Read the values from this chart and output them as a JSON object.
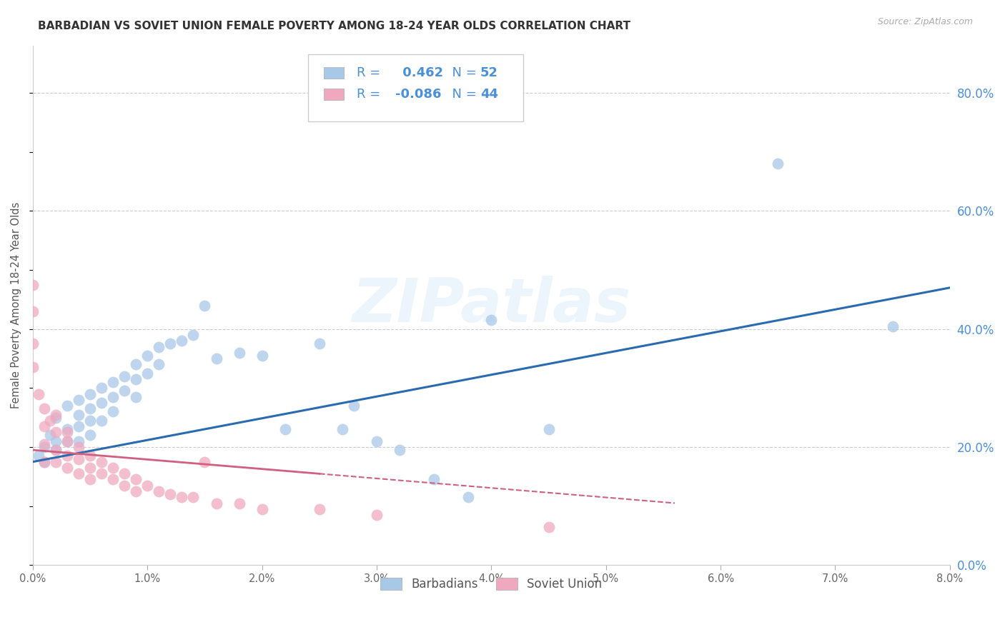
{
  "title": "BARBADIAN VS SOVIET UNION FEMALE POVERTY AMONG 18-24 YEAR OLDS CORRELATION CHART",
  "source": "Source: ZipAtlas.com",
  "ylabel": "Female Poverty Among 18-24 Year Olds",
  "xlim": [
    0.0,
    0.08
  ],
  "ylim": [
    0.0,
    0.88
  ],
  "x_ticks": [
    0.0,
    0.01,
    0.02,
    0.03,
    0.04,
    0.05,
    0.06,
    0.07,
    0.08
  ],
  "x_tick_labels": [
    "0.0%",
    "1.0%",
    "2.0%",
    "3.0%",
    "4.0%",
    "5.0%",
    "6.0%",
    "7.0%",
    "8.0%"
  ],
  "y_ticks": [
    0.0,
    0.2,
    0.4,
    0.6,
    0.8
  ],
  "y_tick_labels": [
    "0.0%",
    "20.0%",
    "40.0%",
    "60.0%",
    "80.0%"
  ],
  "grid_color": "#cccccc",
  "background_color": "#ffffff",
  "blue_dot_color": "#a8c8e8",
  "pink_dot_color": "#f0a8be",
  "blue_line_color": "#2a6ab0",
  "pink_line_color": "#d06080",
  "axis_color": "#4a90d9",
  "watermark": "ZIPatlas",
  "legend_R_blue": "0.462",
  "legend_N_blue": "52",
  "legend_R_pink": "-0.086",
  "legend_N_pink": "44",
  "barbadian_x": [
    0.0005,
    0.001,
    0.001,
    0.0015,
    0.002,
    0.002,
    0.002,
    0.003,
    0.003,
    0.003,
    0.004,
    0.004,
    0.004,
    0.004,
    0.005,
    0.005,
    0.005,
    0.005,
    0.006,
    0.006,
    0.006,
    0.007,
    0.007,
    0.007,
    0.008,
    0.008,
    0.009,
    0.009,
    0.009,
    0.01,
    0.01,
    0.011,
    0.011,
    0.012,
    0.013,
    0.014,
    0.015,
    0.016,
    0.018,
    0.02,
    0.022,
    0.025,
    0.027,
    0.028,
    0.03,
    0.032,
    0.035,
    0.038,
    0.04,
    0.045,
    0.065,
    0.075
  ],
  "barbadian_y": [
    0.185,
    0.2,
    0.175,
    0.22,
    0.25,
    0.21,
    0.195,
    0.27,
    0.23,
    0.21,
    0.28,
    0.255,
    0.235,
    0.21,
    0.29,
    0.265,
    0.245,
    0.22,
    0.3,
    0.275,
    0.245,
    0.31,
    0.285,
    0.26,
    0.32,
    0.295,
    0.34,
    0.315,
    0.285,
    0.355,
    0.325,
    0.37,
    0.34,
    0.375,
    0.38,
    0.39,
    0.44,
    0.35,
    0.36,
    0.355,
    0.23,
    0.375,
    0.23,
    0.27,
    0.21,
    0.195,
    0.145,
    0.115,
    0.415,
    0.23,
    0.68,
    0.405
  ],
  "soviet_x": [
    0.0,
    0.0,
    0.0,
    0.0,
    0.0005,
    0.001,
    0.001,
    0.001,
    0.001,
    0.0015,
    0.002,
    0.002,
    0.002,
    0.002,
    0.003,
    0.003,
    0.003,
    0.003,
    0.004,
    0.004,
    0.004,
    0.005,
    0.005,
    0.005,
    0.006,
    0.006,
    0.007,
    0.007,
    0.008,
    0.008,
    0.009,
    0.009,
    0.01,
    0.011,
    0.012,
    0.013,
    0.014,
    0.015,
    0.016,
    0.018,
    0.02,
    0.025,
    0.03,
    0.045
  ],
  "soviet_y": [
    0.475,
    0.43,
    0.375,
    0.335,
    0.29,
    0.265,
    0.235,
    0.205,
    0.175,
    0.245,
    0.255,
    0.225,
    0.195,
    0.175,
    0.225,
    0.21,
    0.185,
    0.165,
    0.2,
    0.18,
    0.155,
    0.185,
    0.165,
    0.145,
    0.175,
    0.155,
    0.165,
    0.145,
    0.155,
    0.135,
    0.145,
    0.125,
    0.135,
    0.125,
    0.12,
    0.115,
    0.115,
    0.175,
    0.105,
    0.105,
    0.095,
    0.095,
    0.085,
    0.065
  ],
  "blue_line_x0": 0.0,
  "blue_line_y0": 0.175,
  "blue_line_x1": 0.08,
  "blue_line_y1": 0.47,
  "pink_line_x0": 0.0,
  "pink_line_y0": 0.195,
  "pink_line_x1": 0.056,
  "pink_line_y1": 0.105
}
